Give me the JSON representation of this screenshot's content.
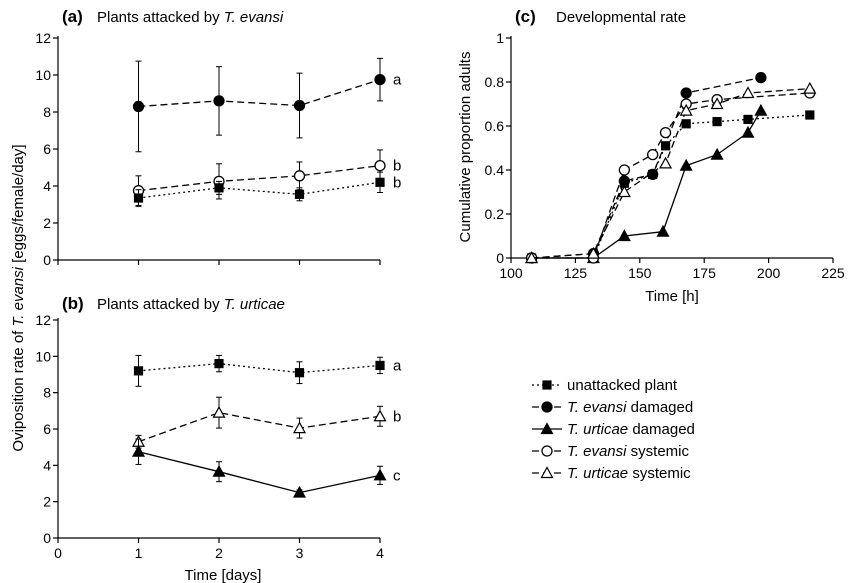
{
  "chart_data": [
    {
      "id": "a",
      "type": "line",
      "panel_label": "(a)",
      "title": "Plants attacked by ",
      "title_italic": "T. evansi",
      "ylabel_shared": "Oviposition rate of ",
      "ylabel_italic": "T. evansi",
      "ylabel_rest": " [eggs/female/day]",
      "ylim": [
        0,
        12
      ],
      "yticks": [
        "0",
        "2",
        "4",
        "6",
        "8",
        "10",
        "12"
      ],
      "xlim": [
        0,
        4
      ],
      "x": [
        1,
        2,
        3,
        4
      ],
      "series": [
        {
          "key": "evansi_damaged",
          "values": [
            8.3,
            8.6,
            8.35,
            9.75
          ],
          "err": [
            2.45,
            1.85,
            1.75,
            1.15
          ],
          "letter": "a"
        },
        {
          "key": "evansi_systemic",
          "values": [
            3.75,
            4.25,
            4.55,
            5.1
          ],
          "err": [
            0.8,
            0.95,
            0.75,
            0.85
          ],
          "letter": "b"
        },
        {
          "key": "unattacked",
          "values": [
            3.35,
            3.9,
            3.55,
            4.2
          ],
          "err": [
            0.45,
            0.35,
            0.35,
            0.55
          ],
          "letter": "b"
        }
      ]
    },
    {
      "id": "b",
      "type": "line",
      "panel_label": "(b)",
      "title": "Plants attacked by ",
      "title_italic": "T. urticae",
      "ylim": [
        0,
        12
      ],
      "yticks": [
        "0",
        "2",
        "4",
        "6",
        "8",
        "10",
        "12"
      ],
      "xlim": [
        0,
        4
      ],
      "x": [
        1,
        2,
        3,
        4
      ],
      "xticks": [
        "0",
        "1",
        "2",
        "3",
        "4"
      ],
      "xlabel": "Time [days]",
      "series": [
        {
          "key": "unattacked",
          "values": [
            9.2,
            9.6,
            9.1,
            9.5
          ],
          "err": [
            0.85,
            0.45,
            0.6,
            0.45
          ],
          "letter": "a"
        },
        {
          "key": "urticae_systemic",
          "values": [
            5.3,
            6.9,
            6.05,
            6.7
          ],
          "err": [
            0.35,
            0.85,
            0.55,
            0.55
          ],
          "letter": "b"
        },
        {
          "key": "urticae_damaged",
          "values": [
            4.75,
            3.65,
            2.5,
            3.45
          ],
          "err": [
            0.7,
            0.55,
            0.15,
            0.5
          ],
          "letter": "c"
        }
      ]
    },
    {
      "id": "c",
      "type": "line",
      "panel_label": "(c)",
      "title": "Developmental rate",
      "ylabel": "Cumulative proportion adults",
      "xlabel": "Time [h]",
      "ylim": [
        0,
        1
      ],
      "yticks": [
        "0",
        "0.2",
        "0.4",
        "0.6",
        "0.8",
        "1"
      ],
      "xlim": [
        100,
        225
      ],
      "xticks": [
        "100",
        "125",
        "150",
        "175",
        "200",
        "225"
      ],
      "series": [
        {
          "key": "unattacked",
          "x": [
            108,
            132,
            144,
            155,
            160,
            168,
            180,
            192,
            216
          ],
          "values": [
            0,
            0,
            0.34,
            0.38,
            0.51,
            0.61,
            0.62,
            0.63,
            0.65
          ]
        },
        {
          "key": "evansi_damaged",
          "x": [
            108,
            132,
            144,
            155,
            168,
            197
          ],
          "values": [
            0,
            0.02,
            0.35,
            0.38,
            0.75,
            0.82
          ]
        },
        {
          "key": "urticae_damaged",
          "x": [
            108,
            132,
            144,
            159,
            168,
            180,
            192,
            197
          ],
          "values": [
            0,
            0,
            0.1,
            0.12,
            0.42,
            0.47,
            0.57,
            0.67
          ]
        },
        {
          "key": "evansi_systemic",
          "x": [
            108,
            132,
            144,
            155,
            160,
            168,
            180,
            216
          ],
          "values": [
            0,
            0,
            0.4,
            0.47,
            0.57,
            0.7,
            0.72,
            0.75
          ]
        },
        {
          "key": "urticae_systemic",
          "x": [
            108,
            132,
            144,
            160,
            168,
            180,
            192,
            216
          ],
          "values": [
            0,
            0.02,
            0.3,
            0.43,
            0.67,
            0.7,
            0.75,
            0.77
          ]
        }
      ]
    }
  ],
  "legend": [
    {
      "key": "unattacked",
      "label_italic": "",
      "label_rest": "unattacked plant",
      "color": "#000000"
    },
    {
      "key": "evansi_damaged",
      "label_italic": "T. evansi",
      "label_rest": "  damaged",
      "color": "#000000"
    },
    {
      "key": "urticae_damaged",
      "label_italic": "T. urticae",
      "label_rest": "  damaged",
      "color": "#000000"
    },
    {
      "key": "evansi_systemic",
      "label_italic": "T. evansi",
      "label_rest": "  systemic",
      "color": "#000000"
    },
    {
      "key": "urticae_systemic",
      "label_italic": "T. urticae",
      "label_rest": "  systemic",
      "color": "#000000"
    }
  ],
  "series_styles": {
    "unattacked": {
      "marker": "square-filled",
      "dash": "dotted"
    },
    "evansi_damaged": {
      "marker": "circle-filled",
      "dash": "dashed"
    },
    "urticae_damaged": {
      "marker": "triangle-filled",
      "dash": "solid"
    },
    "evansi_systemic": {
      "marker": "circle-open",
      "dash": "dashed"
    },
    "urticae_systemic": {
      "marker": "triangle-open",
      "dash": "dashed"
    }
  }
}
